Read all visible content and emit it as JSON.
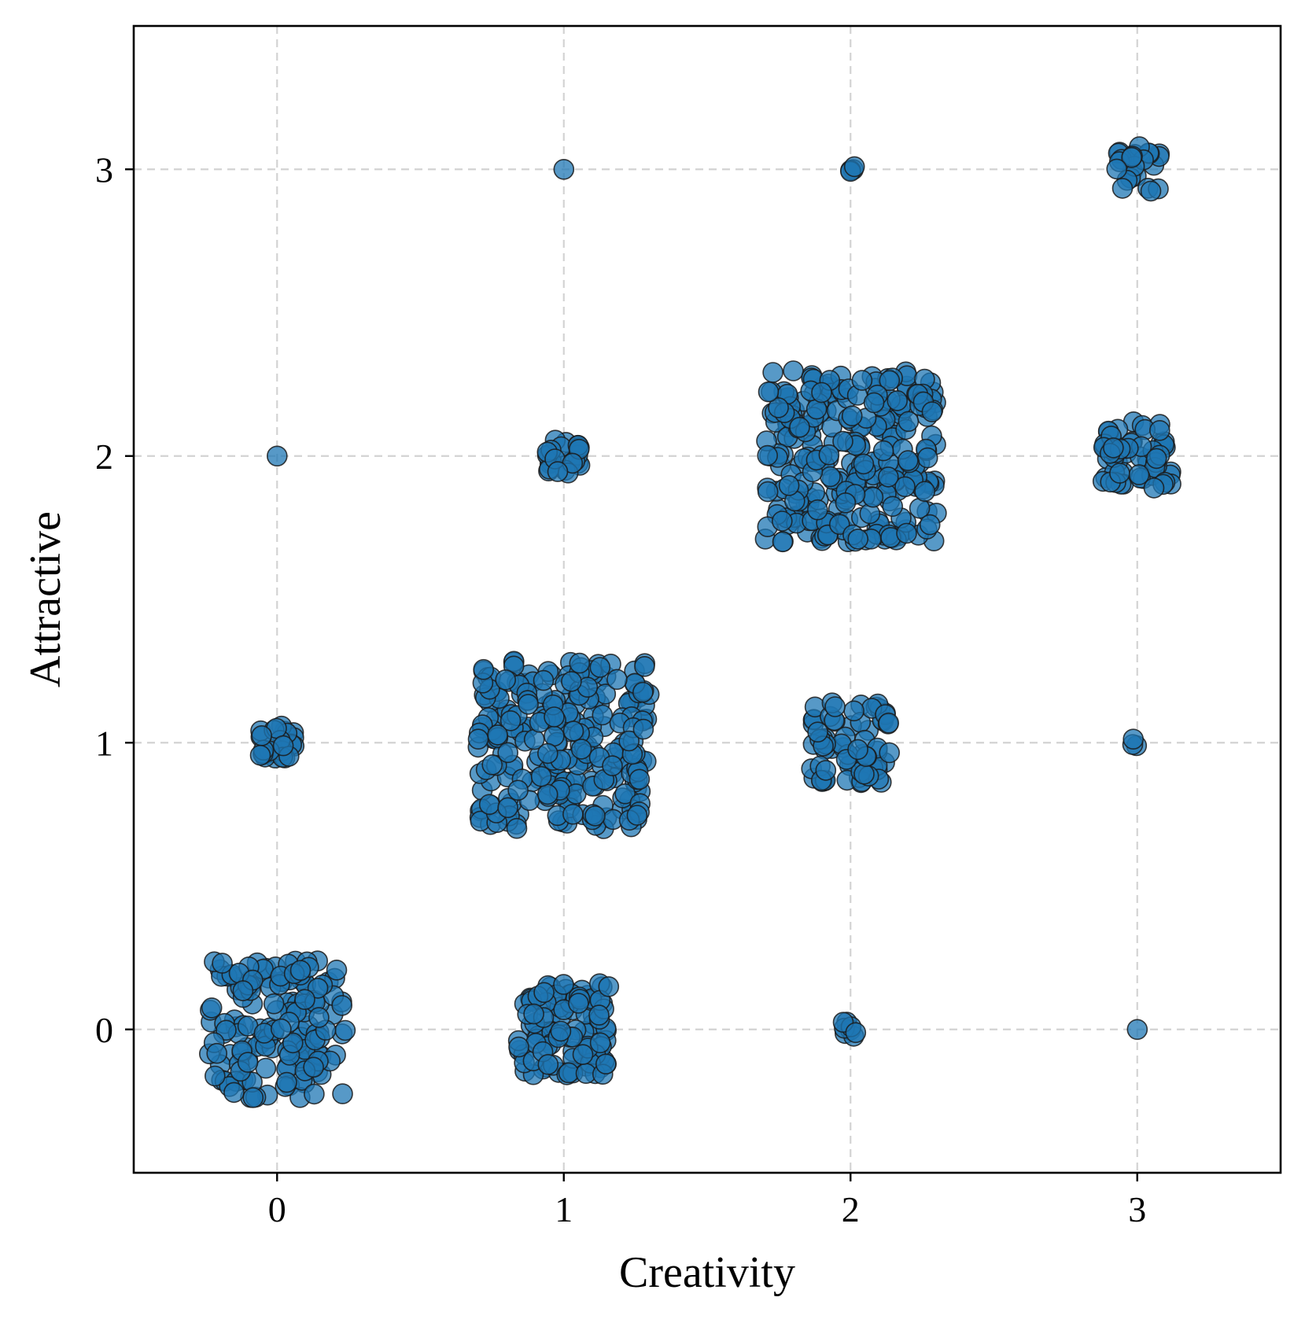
{
  "chart_data": {
    "type": "scatter",
    "title": "",
    "xlabel": "Creativity",
    "ylabel": "Attractive",
    "xlim": [
      -0.5,
      3.5
    ],
    "ylim": [
      -0.5,
      3.5
    ],
    "xticks": [
      0,
      1,
      2,
      3
    ],
    "yticks": [
      0,
      1,
      2,
      3
    ],
    "grid": true,
    "jitter_note": "points are integer pairs displayed with random jitter",
    "marker_color": "#1f77b4",
    "marker_edge_color": "#1a1a1a",
    "marker_alpha": 0.75,
    "clusters": [
      {
        "x": 0,
        "y": 0,
        "count": 160,
        "jitter": 0.24
      },
      {
        "x": 0,
        "y": 1,
        "count": 30,
        "jitter": 0.06
      },
      {
        "x": 0,
        "y": 2,
        "count": 1,
        "jitter": 0.0
      },
      {
        "x": 1,
        "y": 0,
        "count": 110,
        "jitter": 0.16
      },
      {
        "x": 1,
        "y": 1,
        "count": 260,
        "jitter": 0.3
      },
      {
        "x": 1,
        "y": 2,
        "count": 25,
        "jitter": 0.06
      },
      {
        "x": 1,
        "y": 3,
        "count": 1,
        "jitter": 0.0
      },
      {
        "x": 2,
        "y": 0,
        "count": 8,
        "jitter": 0.03
      },
      {
        "x": 2,
        "y": 1,
        "count": 70,
        "jitter": 0.14
      },
      {
        "x": 2,
        "y": 2,
        "count": 280,
        "jitter": 0.3
      },
      {
        "x": 2,
        "y": 3,
        "count": 4,
        "jitter": 0.02
      },
      {
        "x": 3,
        "y": 0,
        "count": 1,
        "jitter": 0.0
      },
      {
        "x": 3,
        "y": 1,
        "count": 3,
        "jitter": 0.02
      },
      {
        "x": 3,
        "y": 2,
        "count": 60,
        "jitter": 0.12
      },
      {
        "x": 3,
        "y": 3,
        "count": 25,
        "jitter": 0.08
      }
    ]
  }
}
